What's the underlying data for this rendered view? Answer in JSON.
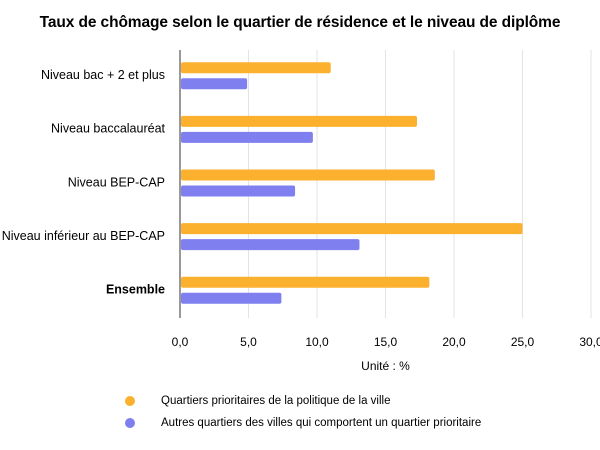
{
  "chart_data": {
    "type": "bar",
    "orientation": "horizontal",
    "title": "Taux de chômage selon le quartier de résidence et le niveau de diplôme",
    "categories": [
      "Niveau bac + 2 et plus",
      "Niveau baccalauréat",
      "Niveau BEP-CAP",
      "Niveau inférieur au BEP-CAP",
      "Ensemble"
    ],
    "bold_categories": [
      "Ensemble"
    ],
    "series": [
      {
        "name": "Quartiers prioritaires de la politique de la ville",
        "color": "#fbb12e",
        "values": [
          11.0,
          17.3,
          18.6,
          25.0,
          18.2
        ]
      },
      {
        "name": "Autres quartiers des villes qui comportent un quartier prioritaire",
        "color": "#7f7ff0",
        "values": [
          4.9,
          9.7,
          8.4,
          13.1,
          7.4
        ]
      }
    ],
    "xlabel": "Unité : %",
    "xlim": [
      0,
      30
    ],
    "xticks": [
      "0,0",
      "5,0",
      "10,0",
      "15,0",
      "20,0",
      "25,0",
      "30,0"
    ],
    "grid": true,
    "legend_position": "bottom"
  }
}
